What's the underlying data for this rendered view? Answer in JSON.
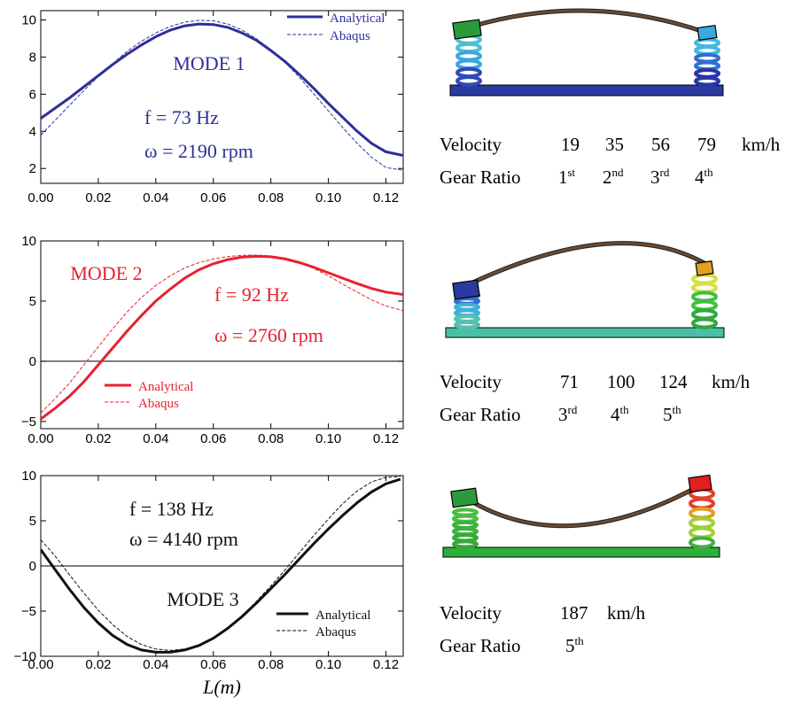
{
  "chart_data": [
    {
      "type": "line",
      "mode_label": "MODE 1",
      "color": "#2e2f99",
      "frequency_label": "f = 73 Hz",
      "speed_label": "ω = 2190 rpm",
      "xlim": [
        0,
        0.126
      ],
      "ylim": [
        1.2,
        10.5
      ],
      "x_ticks": [
        "0.00",
        "0.02",
        "0.04",
        "0.06",
        "0.08",
        "0.10",
        "0.12"
      ],
      "y_ticks": [
        "2",
        "4",
        "6",
        "8",
        "10"
      ],
      "xlabel": "",
      "zero_line": false,
      "legend_position": "top-right",
      "series": [
        {
          "name": "Analytical",
          "style": "solid",
          "x": [
            0.0,
            0.005,
            0.01,
            0.015,
            0.02,
            0.025,
            0.03,
            0.035,
            0.04,
            0.045,
            0.05,
            0.055,
            0.06,
            0.065,
            0.07,
            0.075,
            0.08,
            0.085,
            0.09,
            0.095,
            0.1,
            0.105,
            0.11,
            0.115,
            0.12,
            0.126
          ],
          "y": [
            4.7,
            5.25,
            5.8,
            6.4,
            7.0,
            7.6,
            8.15,
            8.65,
            9.1,
            9.45,
            9.68,
            9.78,
            9.75,
            9.6,
            9.3,
            8.9,
            8.35,
            7.75,
            7.05,
            6.3,
            5.5,
            4.75,
            4.0,
            3.35,
            2.9,
            2.7
          ]
        },
        {
          "name": "Abaqus",
          "style": "dashed",
          "x": [
            0.0,
            0.005,
            0.01,
            0.015,
            0.02,
            0.025,
            0.03,
            0.035,
            0.04,
            0.045,
            0.05,
            0.055,
            0.06,
            0.065,
            0.07,
            0.075,
            0.08,
            0.085,
            0.09,
            0.095,
            0.1,
            0.105,
            0.11,
            0.115,
            0.12,
            0.126
          ],
          "y": [
            3.8,
            4.6,
            5.4,
            6.2,
            6.95,
            7.65,
            8.3,
            8.85,
            9.3,
            9.65,
            9.88,
            9.98,
            9.95,
            9.78,
            9.45,
            8.98,
            8.4,
            7.7,
            6.9,
            6.0,
            5.1,
            4.2,
            3.35,
            2.6,
            2.05,
            1.9
          ]
        }
      ]
    },
    {
      "type": "line",
      "mode_label": "MODE 2",
      "color": "#e8212f",
      "frequency_label": "f = 92 Hz",
      "speed_label": "ω = 2760 rpm",
      "xlim": [
        0,
        0.126
      ],
      "ylim": [
        -5.6,
        10
      ],
      "x_ticks": [
        "0.00",
        "0.02",
        "0.04",
        "0.06",
        "0.08",
        "0.10",
        "0.12"
      ],
      "y_ticks": [
        "-5",
        "0",
        "5",
        "10"
      ],
      "xlabel": "",
      "zero_line": true,
      "legend_position": "bottom-left",
      "series": [
        {
          "name": "Analytical",
          "style": "solid",
          "x": [
            0.0,
            0.005,
            0.01,
            0.015,
            0.02,
            0.025,
            0.03,
            0.035,
            0.04,
            0.045,
            0.05,
            0.055,
            0.06,
            0.065,
            0.07,
            0.075,
            0.08,
            0.085,
            0.09,
            0.095,
            0.1,
            0.105,
            0.11,
            0.115,
            0.12,
            0.126
          ],
          "y": [
            -4.8,
            -3.9,
            -2.9,
            -1.7,
            -0.3,
            1.1,
            2.5,
            3.8,
            5.0,
            6.0,
            6.9,
            7.6,
            8.1,
            8.45,
            8.65,
            8.72,
            8.68,
            8.5,
            8.2,
            7.8,
            7.35,
            6.9,
            6.45,
            6.05,
            5.75,
            5.55
          ]
        },
        {
          "name": "Abaqus",
          "style": "dashed",
          "x": [
            0.0,
            0.005,
            0.01,
            0.015,
            0.02,
            0.025,
            0.03,
            0.035,
            0.04,
            0.045,
            0.05,
            0.055,
            0.06,
            0.065,
            0.07,
            0.075,
            0.08,
            0.085,
            0.09,
            0.095,
            0.1,
            0.105,
            0.11,
            0.115,
            0.12,
            0.126
          ],
          "y": [
            -4.3,
            -3.1,
            -1.8,
            -0.3,
            1.2,
            2.7,
            4.1,
            5.3,
            6.3,
            7.1,
            7.75,
            8.2,
            8.5,
            8.7,
            8.8,
            8.82,
            8.75,
            8.55,
            8.2,
            7.7,
            7.1,
            6.4,
            5.75,
            5.1,
            4.6,
            4.2
          ]
        }
      ]
    },
    {
      "type": "line",
      "mode_label": "MODE 3",
      "color": "#111111",
      "frequency_label": "f = 138 Hz",
      "speed_label": "ω = 4140 rpm",
      "xlim": [
        0,
        0.126
      ],
      "ylim": [
        -10,
        10
      ],
      "x_ticks": [
        "0.00",
        "0.02",
        "0.04",
        "0.06",
        "0.08",
        "0.10",
        "0.12"
      ],
      "y_ticks": [
        "-10",
        "-5",
        "0",
        "5",
        "10"
      ],
      "xlabel": "L(m)",
      "zero_line": true,
      "legend_position": "bottom-right",
      "series": [
        {
          "name": "Analytical",
          "style": "solid",
          "x": [
            0.0,
            0.005,
            0.01,
            0.015,
            0.02,
            0.025,
            0.03,
            0.035,
            0.04,
            0.045,
            0.05,
            0.055,
            0.06,
            0.065,
            0.07,
            0.075,
            0.08,
            0.085,
            0.09,
            0.095,
            0.1,
            0.105,
            0.11,
            0.115,
            0.12,
            0.125
          ],
          "y": [
            1.8,
            -0.4,
            -2.6,
            -4.6,
            -6.3,
            -7.7,
            -8.7,
            -9.3,
            -9.55,
            -9.55,
            -9.3,
            -8.8,
            -8.0,
            -6.9,
            -5.6,
            -4.1,
            -2.5,
            -0.9,
            0.8,
            2.5,
            4.1,
            5.6,
            7.0,
            8.2,
            9.1,
            9.6
          ]
        },
        {
          "name": "Abaqus",
          "style": "dashed",
          "x": [
            0.0,
            0.005,
            0.01,
            0.015,
            0.02,
            0.025,
            0.03,
            0.035,
            0.04,
            0.045,
            0.05,
            0.055,
            0.06,
            0.065,
            0.07,
            0.075,
            0.08,
            0.085,
            0.09,
            0.095,
            0.1,
            0.105,
            0.11,
            0.115,
            0.12,
            0.125
          ],
          "y": [
            2.9,
            1.1,
            -1.0,
            -3.0,
            -4.9,
            -6.5,
            -7.8,
            -8.7,
            -9.2,
            -9.35,
            -9.2,
            -8.75,
            -8.0,
            -6.9,
            -5.5,
            -3.9,
            -2.2,
            -0.4,
            1.5,
            3.4,
            5.2,
            6.9,
            8.3,
            9.3,
            9.8,
            9.9
          ]
        }
      ]
    }
  ],
  "tables": [
    {
      "velocity_label": "Velocity",
      "gear_label": "Gear Ratio",
      "velocities": [
        "19",
        "35",
        "56",
        "79"
      ],
      "unit": "km/h",
      "gears": [
        {
          "base": "1",
          "sup": "st"
        },
        {
          "base": "2",
          "sup": "nd"
        },
        {
          "base": "3",
          "sup": "rd"
        },
        {
          "base": "4",
          "sup": "th"
        }
      ]
    },
    {
      "velocity_label": "Velocity",
      "gear_label": "Gear Ratio",
      "velocities": [
        "71",
        "100",
        "124"
      ],
      "unit": "km/h",
      "gears": [
        {
          "base": "3",
          "sup": "rd"
        },
        {
          "base": "4",
          "sup": "th"
        },
        {
          "base": "5",
          "sup": "th"
        }
      ]
    },
    {
      "velocity_label": "Velocity",
      "gear_label": "Gear Ratio",
      "velocities": [
        "187"
      ],
      "unit": "km/h",
      "gears": [
        {
          "base": "5",
          "sup": "th"
        }
      ]
    }
  ]
}
